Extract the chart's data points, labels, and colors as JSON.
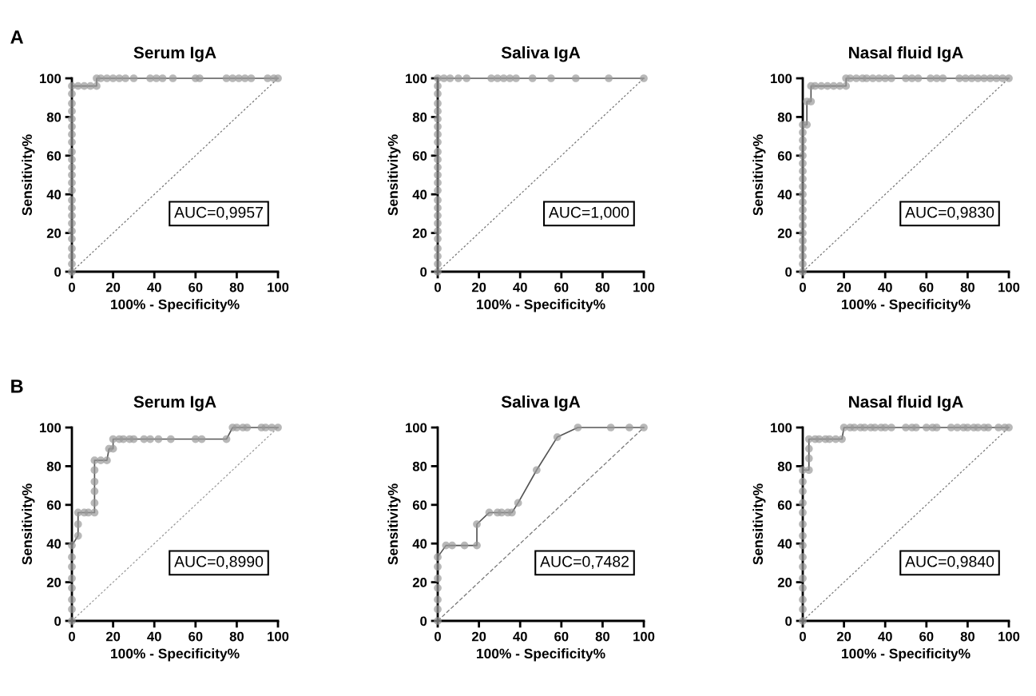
{
  "chart_data": [
    {
      "type": "line",
      "title": "Serum IgA",
      "xlabel": "100% - Specificity%",
      "ylabel": "Sensitivity%",
      "xlim": [
        0,
        100
      ],
      "ylim": [
        0,
        100
      ],
      "xticks": [
        0,
        20,
        40,
        60,
        80,
        100
      ],
      "yticks": [
        0,
        20,
        40,
        60,
        80,
        100
      ],
      "grid": false,
      "legend": false,
      "annotations": [
        "A",
        "AUC=0,9957"
      ],
      "series": [
        {
          "color": "#9a9a9a",
          "marker": "circle",
          "line_style": "solid",
          "x": [
            0,
            0,
            0,
            0,
            0,
            0,
            0,
            0,
            0,
            0,
            0,
            0,
            0,
            0,
            0,
            0,
            0,
            0,
            0,
            0,
            0,
            0,
            0,
            0,
            3,
            6,
            9,
            12,
            12,
            14,
            17,
            20,
            23,
            26,
            30,
            38,
            41,
            44,
            49,
            60,
            62,
            75,
            78,
            81,
            84,
            87,
            95,
            98,
            100
          ],
          "values": [
            0,
            4,
            8,
            12,
            17,
            21,
            25,
            29,
            33,
            37,
            42,
            46,
            50,
            54,
            58,
            62,
            67,
            71,
            75,
            79,
            83,
            87,
            92,
            96,
            96,
            96,
            96,
            96,
            100,
            100,
            100,
            100,
            100,
            100,
            100,
            100,
            100,
            100,
            100,
            100,
            100,
            100,
            100,
            100,
            100,
            100,
            100,
            100,
            100
          ]
        },
        {
          "color": "#777777",
          "marker": "none",
          "line_style": "dotted",
          "x": [
            0,
            100
          ],
          "values": [
            0,
            100
          ]
        }
      ]
    },
    {
      "type": "line",
      "title": "Saliva IgA",
      "xlabel": "100% - Specificity%",
      "ylabel": "Sensitivity%",
      "xlim": [
        0,
        100
      ],
      "ylim": [
        0,
        100
      ],
      "xticks": [
        0,
        20,
        40,
        60,
        80,
        100
      ],
      "yticks": [
        0,
        20,
        40,
        60,
        80,
        100
      ],
      "grid": false,
      "legend": false,
      "annotations": [
        "AUC=1,000"
      ],
      "series": [
        {
          "color": "#9a9a9a",
          "marker": "circle",
          "line_style": "solid",
          "x": [
            0,
            0,
            0,
            0,
            0,
            0,
            0,
            0,
            0,
            0,
            0,
            0,
            0,
            0,
            0,
            0,
            0,
            0,
            0,
            0,
            0,
            0,
            0,
            0,
            0,
            3,
            6,
            10,
            14,
            26,
            29,
            32,
            35,
            38,
            46,
            55,
            67,
            83,
            100
          ],
          "values": [
            0,
            4,
            8,
            12,
            17,
            21,
            25,
            29,
            33,
            37,
            42,
            46,
            50,
            54,
            58,
            62,
            67,
            71,
            75,
            79,
            83,
            87,
            92,
            96,
            100,
            100,
            100,
            100,
            100,
            100,
            100,
            100,
            100,
            100,
            100,
            100,
            100,
            100,
            100
          ]
        },
        {
          "color": "#777777",
          "marker": "none",
          "line_style": "dotted",
          "x": [
            0,
            100
          ],
          "values": [
            0,
            100
          ]
        }
      ]
    },
    {
      "type": "line",
      "title": "Nasal fluid IgA",
      "xlabel": "100% - Specificity%",
      "ylabel": "Sensitivity%",
      "xlim": [
        0,
        100
      ],
      "ylim": [
        0,
        100
      ],
      "xticks": [
        0,
        20,
        40,
        60,
        80,
        100
      ],
      "yticks": [
        0,
        20,
        40,
        60,
        80,
        100
      ],
      "grid": false,
      "legend": false,
      "annotations": [
        "AUC=0,9830"
      ],
      "series": [
        {
          "color": "#9a9a9a",
          "marker": "circle",
          "line_style": "solid",
          "x": [
            0,
            0,
            0,
            0,
            0,
            0,
            0,
            0,
            0,
            0,
            0,
            0,
            0,
            0,
            0,
            0,
            0,
            0,
            0,
            0,
            2,
            2,
            4,
            4,
            6,
            9,
            12,
            15,
            18,
            21,
            21,
            23,
            26,
            29,
            31,
            34,
            37,
            40,
            43,
            50,
            53,
            56,
            62,
            65,
            68,
            76,
            79,
            82,
            85,
            88,
            91,
            94,
            97,
            100
          ],
          "values": [
            0,
            4,
            8,
            12,
            16,
            20,
            24,
            28,
            32,
            36,
            40,
            44,
            48,
            52,
            56,
            60,
            64,
            68,
            72,
            76,
            76,
            88,
            88,
            96,
            96,
            96,
            96,
            96,
            96,
            96,
            100,
            100,
            100,
            100,
            100,
            100,
            100,
            100,
            100,
            100,
            100,
            100,
            100,
            100,
            100,
            100,
            100,
            100,
            100,
            100,
            100,
            100,
            100,
            100
          ]
        },
        {
          "color": "#777777",
          "marker": "none",
          "line_style": "dotted",
          "x": [
            0,
            100
          ],
          "values": [
            0,
            100
          ]
        }
      ]
    },
    {
      "type": "line",
      "title": "Serum IgA",
      "xlabel": "100% - Specificity%",
      "ylabel": "Sensitivity%",
      "xlim": [
        0,
        100
      ],
      "ylim": [
        0,
        100
      ],
      "xticks": [
        0,
        20,
        40,
        60,
        80,
        100
      ],
      "yticks": [
        0,
        20,
        40,
        60,
        80,
        100
      ],
      "grid": false,
      "legend": false,
      "annotations": [
        "B",
        "AUC=0,8990"
      ],
      "series": [
        {
          "color": "#9a9a9a",
          "marker": "circle",
          "line_style": "solid",
          "x": [
            0,
            0,
            0,
            0,
            0,
            0,
            0,
            0,
            3,
            3,
            3,
            6,
            8,
            11,
            11,
            11,
            11,
            11,
            11,
            14,
            17,
            18,
            20,
            20,
            23,
            25,
            28,
            30,
            35,
            38,
            42,
            48,
            60,
            63,
            75,
            78,
            80,
            83,
            85,
            92,
            94,
            97,
            100
          ],
          "values": [
            0,
            6,
            11,
            17,
            22,
            28,
            33,
            39,
            44,
            50,
            56,
            56,
            56,
            56,
            61,
            67,
            72,
            78,
            83,
            83,
            83,
            89,
            89,
            94,
            94,
            94,
            94,
            94,
            94,
            94,
            94,
            94,
            94,
            94,
            94,
            100,
            100,
            100,
            100,
            100,
            100,
            100,
            100
          ]
        },
        {
          "color": "#999999",
          "marker": "none",
          "line_style": "dotted",
          "x": [
            0,
            100
          ],
          "values": [
            0,
            100
          ]
        }
      ]
    },
    {
      "type": "line",
      "title": "Saliva IgA",
      "xlabel": "100% - Specificity%",
      "ylabel": "Sensitivity%",
      "xlim": [
        0,
        100
      ],
      "ylim": [
        0,
        100
      ],
      "xticks": [
        0,
        20,
        40,
        60,
        80,
        100
      ],
      "yticks": [
        0,
        20,
        40,
        60,
        80,
        100
      ],
      "grid": false,
      "legend": false,
      "annotations": [
        "AUC=0,7482"
      ],
      "series": [
        {
          "color": "#9a9a9a",
          "marker": "circle",
          "line_style": "solid",
          "x": [
            0,
            0,
            0,
            0,
            0,
            0,
            0,
            4,
            7,
            13,
            19,
            19,
            25,
            29,
            31,
            34,
            36,
            39,
            48,
            58,
            68,
            84,
            93,
            100
          ],
          "values": [
            0,
            6,
            11,
            17,
            22,
            28,
            33,
            39,
            39,
            39,
            39,
            50,
            56,
            56,
            56,
            56,
            56,
            61,
            78,
            95,
            100,
            100,
            100,
            100
          ]
        },
        {
          "color": "#777777",
          "marker": "none",
          "line_style": "dashed",
          "x": [
            0,
            100
          ],
          "values": [
            0,
            100
          ]
        }
      ]
    },
    {
      "type": "line",
      "title": "Nasal fluid IgA",
      "xlabel": "100% - Specificity%",
      "ylabel": "Sensitivity%",
      "xlim": [
        0,
        100
      ],
      "ylim": [
        0,
        100
      ],
      "xticks": [
        0,
        20,
        40,
        60,
        80,
        100
      ],
      "yticks": [
        0,
        20,
        40,
        60,
        80,
        100
      ],
      "grid": false,
      "legend": false,
      "annotations": [
        "AUC=0,9840"
      ],
      "series": [
        {
          "color": "#9a9a9a",
          "marker": "circle",
          "line_style": "solid",
          "x": [
            0,
            0,
            0,
            0,
            0,
            0,
            0,
            0,
            0,
            0,
            0,
            0,
            0,
            0,
            0,
            3,
            3,
            3,
            3,
            6,
            8,
            11,
            13,
            16,
            19,
            20,
            23,
            25,
            28,
            30,
            33,
            35,
            38,
            40,
            43,
            50,
            53,
            55,
            60,
            63,
            65,
            72,
            75,
            78,
            80,
            83,
            85,
            88,
            90,
            95,
            98,
            100
          ],
          "values": [
            0,
            6,
            11,
            17,
            22,
            28,
            33,
            39,
            44,
            50,
            56,
            61,
            67,
            72,
            78,
            78,
            84,
            89,
            94,
            94,
            94,
            94,
            94,
            94,
            94,
            100,
            100,
            100,
            100,
            100,
            100,
            100,
            100,
            100,
            100,
            100,
            100,
            100,
            100,
            100,
            100,
            100,
            100,
            100,
            100,
            100,
            100,
            100,
            100,
            100,
            100,
            100
          ]
        },
        {
          "color": "#777777",
          "marker": "none",
          "line_style": "dotted",
          "x": [
            0,
            100
          ],
          "values": [
            0,
            100
          ]
        }
      ]
    }
  ]
}
